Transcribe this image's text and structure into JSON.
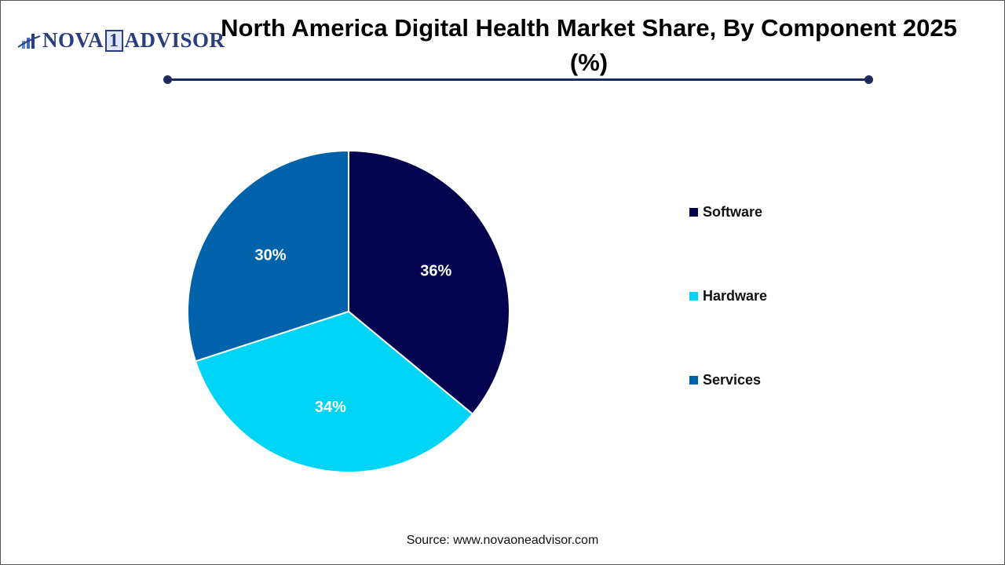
{
  "logo": {
    "text_a": "NOVA",
    "text_one": "1",
    "text_b": "ADVISOR"
  },
  "title": "North America Digital Health Market Share, By Component 2025 (%)",
  "source": "Source: www.novaoneadvisor.com",
  "chart_data": {
    "type": "pie",
    "title": "North America Digital Health Market Share, By Component 2025 (%)",
    "categories": [
      "Software",
      "Hardware",
      "Services"
    ],
    "values": [
      36,
      34,
      30
    ],
    "labels": [
      "36%",
      "34%",
      "30%"
    ],
    "colors": [
      "#03034f",
      "#00d4f4",
      "#0062aa"
    ],
    "start_angle": "top, clockwise",
    "legend_placement": "right"
  }
}
